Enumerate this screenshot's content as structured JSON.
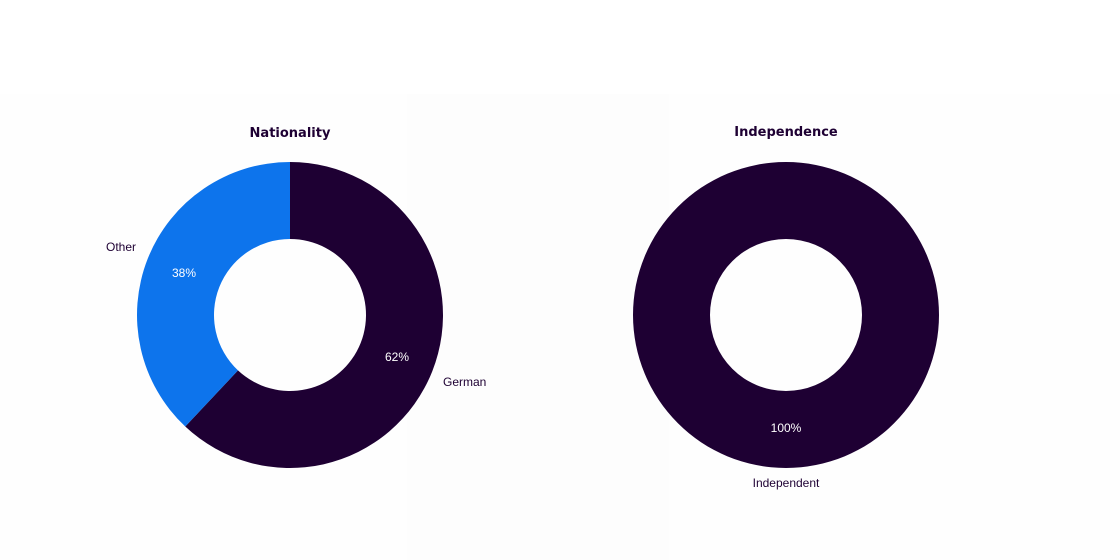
{
  "chart_data": [
    {
      "type": "pie",
      "title": "Nationality",
      "categories": [
        "German",
        "Other"
      ],
      "values": [
        62,
        38
      ],
      "value_labels": [
        "62%",
        "38%"
      ],
      "colors": [
        "#1e0033",
        "#0d74ec"
      ],
      "donut": true
    },
    {
      "type": "pie",
      "title": "Independence",
      "categories": [
        "Independent"
      ],
      "values": [
        100
      ],
      "value_labels": [
        "100%"
      ],
      "colors": [
        "#1e0033"
      ],
      "donut": true
    }
  ]
}
